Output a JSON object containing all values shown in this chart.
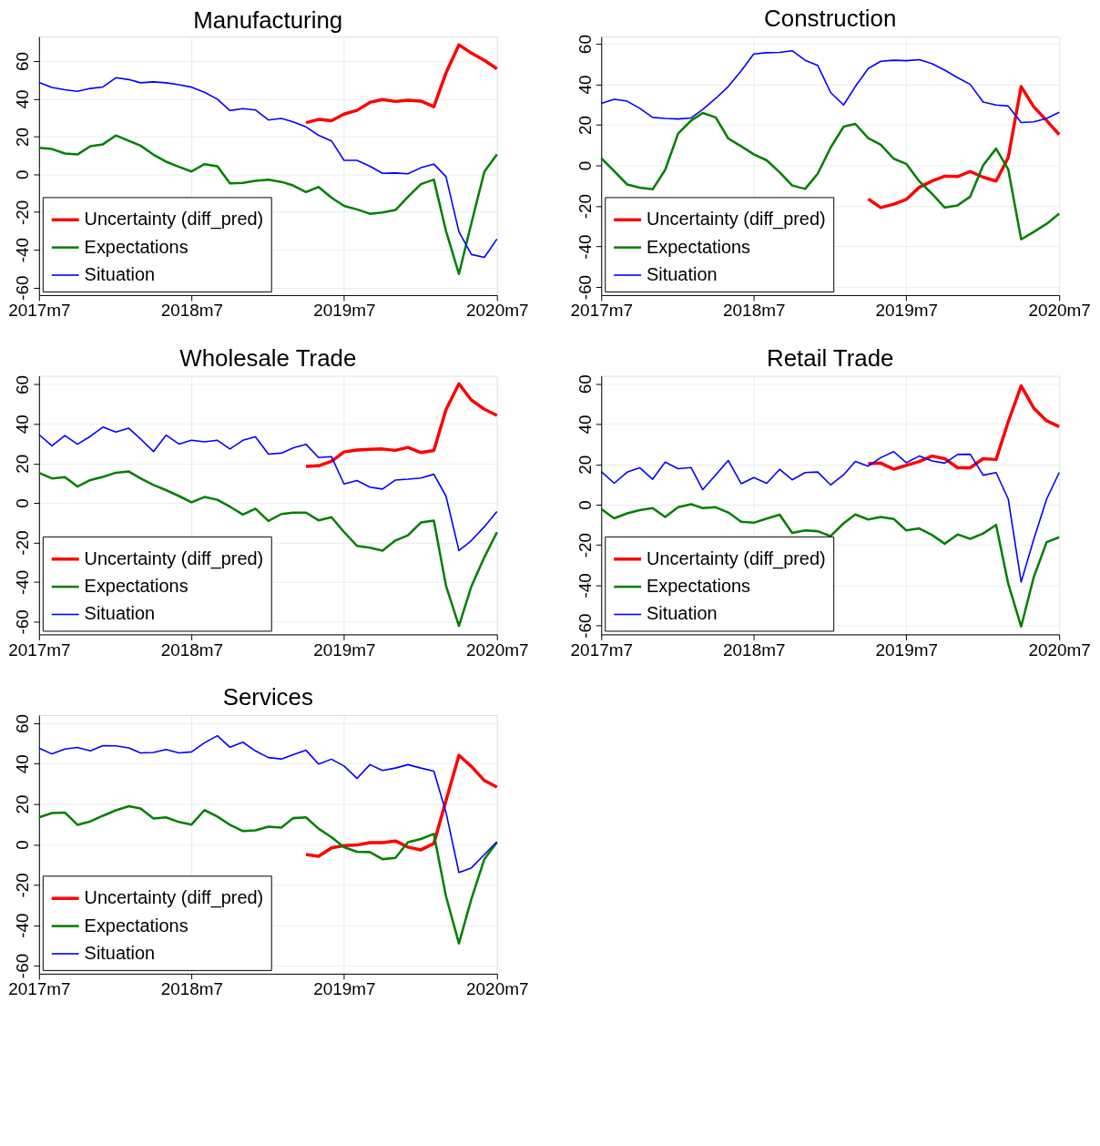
{
  "chart_data": [
    {
      "type": "line",
      "title": "Manufacturing",
      "x": [
        "2017-07",
        "2017-08",
        "2017-09",
        "2017-10",
        "2017-11",
        "2017-12",
        "2018-01",
        "2018-02",
        "2018-03",
        "2018-04",
        "2018-05",
        "2018-06",
        "2018-07",
        "2018-08",
        "2018-09",
        "2018-10",
        "2018-11",
        "2018-12",
        "2019-01",
        "2019-02",
        "2019-03",
        "2019-04",
        "2019-05",
        "2019-06",
        "2019-07",
        "2019-08",
        "2019-09",
        "2019-10",
        "2019-11",
        "2019-12",
        "2020-01",
        "2020-02",
        "2020-03",
        "2020-04",
        "2020-05",
        "2020-06",
        "2020-07"
      ],
      "xlim": [
        "2017-07",
        "2020-07"
      ],
      "xticks": [
        {
          "value": "2017-07",
          "label": "2017m7"
        },
        {
          "value": "2018-07",
          "label": "2018m7"
        },
        {
          "value": "2019-07",
          "label": "2019m7"
        },
        {
          "value": "2020-07",
          "label": "2020m7"
        }
      ],
      "ylim": [
        -64,
        73
      ],
      "yticks": [
        -60,
        -40,
        -20,
        0,
        20,
        40,
        60
      ],
      "grid": true,
      "legend": "bottom left",
      "series": [
        {
          "name": "Uncertainty (diff_pred)",
          "color": "#ff0000",
          "values": [
            null,
            null,
            null,
            null,
            null,
            null,
            null,
            null,
            null,
            null,
            null,
            null,
            null,
            null,
            null,
            null,
            null,
            null,
            null,
            null,
            null,
            27.4,
            29.1,
            28.4,
            31.9,
            33.9,
            38.1,
            39.6,
            38.6,
            39.3,
            38.8,
            35.8,
            53.7,
            68.6,
            64.2,
            60.4,
            55.9
          ]
        },
        {
          "name": "Expectations",
          "color": "#008000",
          "values": [
            14,
            13.4,
            11,
            10.5,
            14.9,
            15.9,
            20.6,
            17.7,
            15.2,
            10.4,
            6.7,
            4,
            1.5,
            5.4,
            4.3,
            -4.8,
            -4.5,
            -3.5,
            -2.8,
            -4,
            -5.9,
            -9.4,
            -6.7,
            -12.4,
            -16.7,
            -18.6,
            -20.9,
            -20.2,
            -18.9,
            -12,
            -5.2,
            -2.8,
            -30,
            -52.8,
            -25.8,
            1.5,
            10.5
          ]
        },
        {
          "name": "Situation",
          "color": "#0000ff",
          "values": [
            48.7,
            46,
            44.8,
            44,
            45.5,
            46.3,
            51.2,
            50.2,
            48.5,
            49,
            48.5,
            47.5,
            46.2,
            43.5,
            39.8,
            33.8,
            34.8,
            34.1,
            28.8,
            29.6,
            27.8,
            25.1,
            20.7,
            17.7,
            7.4,
            7.4,
            4.3,
            0.5,
            0.7,
            0.3,
            3.5,
            5.4,
            -1.2,
            -30.4,
            -42.5,
            -44,
            -34.3
          ]
        }
      ]
    },
    {
      "type": "line",
      "title": "Construction",
      "x": [
        "2017-07",
        "2017-08",
        "2017-09",
        "2017-10",
        "2017-11",
        "2017-12",
        "2018-01",
        "2018-02",
        "2018-03",
        "2018-04",
        "2018-05",
        "2018-06",
        "2018-07",
        "2018-08",
        "2018-09",
        "2018-10",
        "2018-11",
        "2018-12",
        "2019-01",
        "2019-02",
        "2019-03",
        "2019-04",
        "2019-05",
        "2019-06",
        "2019-07",
        "2019-08",
        "2019-09",
        "2019-10",
        "2019-11",
        "2019-12",
        "2020-01",
        "2020-02",
        "2020-03",
        "2020-04",
        "2020-05",
        "2020-06",
        "2020-07"
      ],
      "xlim": [
        "2017-07",
        "2020-07"
      ],
      "xticks": [
        {
          "value": "2017-07",
          "label": "2017m7"
        },
        {
          "value": "2018-07",
          "label": "2018m7"
        },
        {
          "value": "2019-07",
          "label": "2019m7"
        },
        {
          "value": "2020-07",
          "label": "2020m7"
        }
      ],
      "ylim": [
        -64,
        63.6
      ],
      "yticks": [
        -60,
        -40,
        -20,
        0,
        20,
        40,
        60
      ],
      "grid": true,
      "legend": "bottom left",
      "series": [
        {
          "name": "Uncertainty (diff_pred)",
          "color": "#ff0000",
          "values": [
            null,
            null,
            null,
            null,
            null,
            null,
            null,
            null,
            null,
            null,
            null,
            null,
            null,
            null,
            null,
            null,
            null,
            null,
            null,
            null,
            null,
            -16.6,
            -20.8,
            -19.1,
            -16.8,
            -10.8,
            -7.7,
            -5.3,
            -5.5,
            -3,
            -5.8,
            -7.7,
            3.9,
            38.9,
            29,
            22.1,
            15.2
          ]
        },
        {
          "name": "Expectations",
          "color": "#008000",
          "values": [
            3.6,
            -2.8,
            -9.4,
            -11,
            -11.8,
            -2.2,
            15.7,
            22.1,
            25.9,
            23.7,
            13.3,
            9.4,
            5.5,
            2.5,
            -3.4,
            -9.9,
            -11.6,
            -4.1,
            8.8,
            19.1,
            20.5,
            13.5,
            10.2,
            3.3,
            0.8,
            -7.8,
            -14.1,
            -20.8,
            -19.7,
            -15.4,
            0,
            8.3,
            -1.9,
            -36.5,
            -32.8,
            -28.8,
            -23.8
          ]
        },
        {
          "name": "Situation",
          "color": "#0000ff",
          "values": [
            30.6,
            32.6,
            31.7,
            28.2,
            23.7,
            23.2,
            22.9,
            23.4,
            27.6,
            33.1,
            38.9,
            46.7,
            55,
            55.6,
            55.8,
            56.6,
            51.9,
            49.4,
            36,
            29.8,
            38.9,
            47.8,
            51.4,
            51.9,
            51.7,
            52.2,
            50.2,
            47,
            43.3,
            40,
            31.3,
            29.8,
            29.3,
            21.2,
            21.5,
            23.2,
            26.2
          ]
        }
      ]
    },
    {
      "type": "line",
      "title": "Wholesale Trade",
      "x": [
        "2017-07",
        "2017-08",
        "2017-09",
        "2017-10",
        "2017-11",
        "2017-12",
        "2018-01",
        "2018-02",
        "2018-03",
        "2018-04",
        "2018-05",
        "2018-06",
        "2018-07",
        "2018-08",
        "2018-09",
        "2018-10",
        "2018-11",
        "2018-12",
        "2019-01",
        "2019-02",
        "2019-03",
        "2019-04",
        "2019-05",
        "2019-06",
        "2019-07",
        "2019-08",
        "2019-09",
        "2019-10",
        "2019-11",
        "2019-12",
        "2020-01",
        "2020-02",
        "2020-03",
        "2020-04",
        "2020-05",
        "2020-06",
        "2020-07"
      ],
      "xlim": [
        "2017-07",
        "2020-07"
      ],
      "xticks": [
        {
          "value": "2017-07",
          "label": "2017m7"
        },
        {
          "value": "2018-07",
          "label": "2018m7"
        },
        {
          "value": "2019-07",
          "label": "2019m7"
        },
        {
          "value": "2020-07",
          "label": "2020m7"
        }
      ],
      "ylim": [
        -66.5,
        64.3
      ],
      "yticks": [
        -60,
        -40,
        -20,
        0,
        20,
        40,
        60
      ],
      "grid": true,
      "legend": "bottom left",
      "series": [
        {
          "name": "Uncertainty (diff_pred)",
          "color": "#ff0000",
          "values": [
            null,
            null,
            null,
            null,
            null,
            null,
            null,
            null,
            null,
            null,
            null,
            null,
            null,
            null,
            null,
            null,
            null,
            null,
            null,
            null,
            null,
            18.5,
            18.8,
            21.1,
            25.8,
            26.8,
            27.1,
            27.3,
            26.6,
            28.1,
            25.5,
            26.5,
            47.2,
            60.3,
            52,
            47.4,
            44.3
          ]
        },
        {
          "name": "Expectations",
          "color": "#008000",
          "values": [
            15.2,
            12.4,
            13.1,
            8.3,
            11.6,
            13.2,
            15.3,
            15.9,
            12.4,
            9.1,
            6.5,
            3.5,
            0.3,
            3,
            1.6,
            -1.9,
            -5.9,
            -2.9,
            -9.1,
            -5.6,
            -4.9,
            -4.9,
            -8.8,
            -7.2,
            -14.7,
            -21.7,
            -22.6,
            -24.1,
            -19,
            -16.4,
            -9.9,
            -8.9,
            -41.8,
            -62.2,
            -42.1,
            -27.4,
            -14.8
          ]
        },
        {
          "name": "Situation",
          "color": "#0000ff",
          "values": [
            34.6,
            28.9,
            34.1,
            29.7,
            33.7,
            38.4,
            35.9,
            37.8,
            32.4,
            26,
            34.3,
            29.8,
            31.7,
            30.9,
            31.7,
            27.3,
            31.7,
            33.5,
            24.7,
            25.2,
            27.8,
            29.7,
            23,
            23.4,
            9.6,
            11.3,
            8,
            7,
            11.6,
            12,
            12.6,
            14.5,
            3.5,
            -24.1,
            -19,
            -12,
            -4.3
          ]
        }
      ]
    },
    {
      "type": "line",
      "title": "Retail Trade",
      "x": [
        "2017-07",
        "2017-08",
        "2017-09",
        "2017-10",
        "2017-11",
        "2017-12",
        "2018-01",
        "2018-02",
        "2018-03",
        "2018-04",
        "2018-05",
        "2018-06",
        "2018-07",
        "2018-08",
        "2018-09",
        "2018-10",
        "2018-11",
        "2018-12",
        "2019-01",
        "2019-02",
        "2019-03",
        "2019-04",
        "2019-05",
        "2019-06",
        "2019-07",
        "2019-08",
        "2019-09",
        "2019-10",
        "2019-11",
        "2019-12",
        "2020-01",
        "2020-02",
        "2020-03",
        "2020-04",
        "2020-05",
        "2020-06",
        "2020-07"
      ],
      "xlim": [
        "2017-07",
        "2020-07"
      ],
      "xticks": [
        {
          "value": "2017-07",
          "label": "2017m7"
        },
        {
          "value": "2018-07",
          "label": "2018m7"
        },
        {
          "value": "2019-07",
          "label": "2019m7"
        },
        {
          "value": "2020-07",
          "label": "2020m7"
        }
      ],
      "ylim": [
        -64.4,
        63.9
      ],
      "yticks": [
        -60,
        -40,
        -20,
        0,
        20,
        40,
        60
      ],
      "grid": true,
      "legend": "bottom left",
      "series": [
        {
          "name": "Uncertainty (diff_pred)",
          "color": "#ff0000",
          "values": [
            null,
            null,
            null,
            null,
            null,
            null,
            null,
            null,
            null,
            null,
            null,
            null,
            null,
            null,
            null,
            null,
            null,
            null,
            null,
            null,
            null,
            20.3,
            20.6,
            17.6,
            19.5,
            21.4,
            24.1,
            22.8,
            18.3,
            18.3,
            22.8,
            22.4,
            41.1,
            58.9,
            47.9,
            41.6,
            38.7
          ]
        },
        {
          "name": "Expectations",
          "color": "#008000",
          "values": [
            -2.2,
            -6.8,
            -4.3,
            -2.7,
            -1.7,
            -6.1,
            -1.3,
            0.2,
            -1.7,
            -1.3,
            -3.9,
            -8.5,
            -9,
            -6.9,
            -5,
            -14,
            -12.8,
            -13.2,
            -15.6,
            -9.3,
            -4.9,
            -7.4,
            -6.1,
            -7.1,
            -12.8,
            -11.8,
            -15.1,
            -19.4,
            -14.8,
            -17,
            -14.3,
            -10.1,
            -39.2,
            -60.5,
            -36.1,
            -18.6,
            -16.2
          ]
        },
        {
          "name": "Situation",
          "color": "#0000ff",
          "values": [
            16.4,
            10.6,
            16.1,
            18.3,
            12.6,
            21.1,
            17.8,
            18.4,
            7.4,
            14.8,
            21.9,
            10.4,
            13.4,
            10.6,
            17.5,
            12.3,
            15.9,
            16.2,
            9.8,
            14.8,
            21.4,
            19.1,
            23.3,
            26.3,
            20.8,
            24.1,
            21.7,
            20.6,
            24.9,
            25,
            14.6,
            15.9,
            2.8,
            -38.4,
            -17.3,
            2.8,
            15.9
          ]
        }
      ]
    },
    {
      "type": "line",
      "title": "Services",
      "x": [
        "2017-07",
        "2017-08",
        "2017-09",
        "2017-10",
        "2017-11",
        "2017-12",
        "2018-01",
        "2018-02",
        "2018-03",
        "2018-04",
        "2018-05",
        "2018-06",
        "2018-07",
        "2018-08",
        "2018-09",
        "2018-10",
        "2018-11",
        "2018-12",
        "2019-01",
        "2019-02",
        "2019-03",
        "2019-04",
        "2019-05",
        "2019-06",
        "2019-07",
        "2019-08",
        "2019-09",
        "2019-10",
        "2019-11",
        "2019-12",
        "2020-01",
        "2020-02",
        "2020-03",
        "2020-04",
        "2020-05",
        "2020-06",
        "2020-07"
      ],
      "xlim": [
        "2017-07",
        "2020-07"
      ],
      "xticks": [
        {
          "value": "2017-07",
          "label": "2017m7"
        },
        {
          "value": "2018-07",
          "label": "2018m7"
        },
        {
          "value": "2019-07",
          "label": "2019m7"
        },
        {
          "value": "2020-07",
          "label": "2020m7"
        }
      ],
      "ylim": [
        -64,
        64
      ],
      "yticks": [
        -60,
        -40,
        -20,
        0,
        20,
        40,
        60
      ],
      "grid": true,
      "legend": "bottom left",
      "series": [
        {
          "name": "Uncertainty (diff_pred)",
          "color": "#ff0000",
          "values": [
            null,
            null,
            null,
            null,
            null,
            null,
            null,
            null,
            null,
            null,
            null,
            null,
            null,
            null,
            null,
            null,
            null,
            null,
            null,
            null,
            null,
            -5,
            -5.9,
            -1.7,
            -0.6,
            -0.3,
            0.9,
            0.9,
            1.7,
            -1.3,
            -2.7,
            0.5,
            21.6,
            44.1,
            38.6,
            31.6,
            28.4
          ]
        },
        {
          "name": "Expectations",
          "color": "#008000",
          "values": [
            13.4,
            15.5,
            15.8,
            9.7,
            11.4,
            14.2,
            16.9,
            18.9,
            17.8,
            12.8,
            13.4,
            11.1,
            9.8,
            17,
            13.8,
            9.7,
            6.6,
            7,
            8.8,
            8.3,
            13,
            13.4,
            7.8,
            3.6,
            -1.4,
            -3.6,
            -3.8,
            -7.3,
            -6.7,
            1.1,
            2.7,
            5.2,
            -25.6,
            -49,
            -26.9,
            -7.2,
            1.1
          ]
        },
        {
          "name": "Situation",
          "color": "#0000ff",
          "values": [
            47.7,
            44.8,
            47.2,
            48,
            46.3,
            48.9,
            48.8,
            47.8,
            45.3,
            45.5,
            47,
            45.3,
            45.8,
            50.3,
            53.8,
            48.1,
            50.6,
            46.3,
            43,
            42.3,
            44.4,
            46.6,
            39.8,
            42.2,
            38.8,
            32.7,
            39.5,
            36.6,
            37.8,
            39.5,
            37.8,
            36.3,
            15.9,
            -13.9,
            -11.6,
            -5,
            1.3
          ]
        }
      ]
    }
  ]
}
